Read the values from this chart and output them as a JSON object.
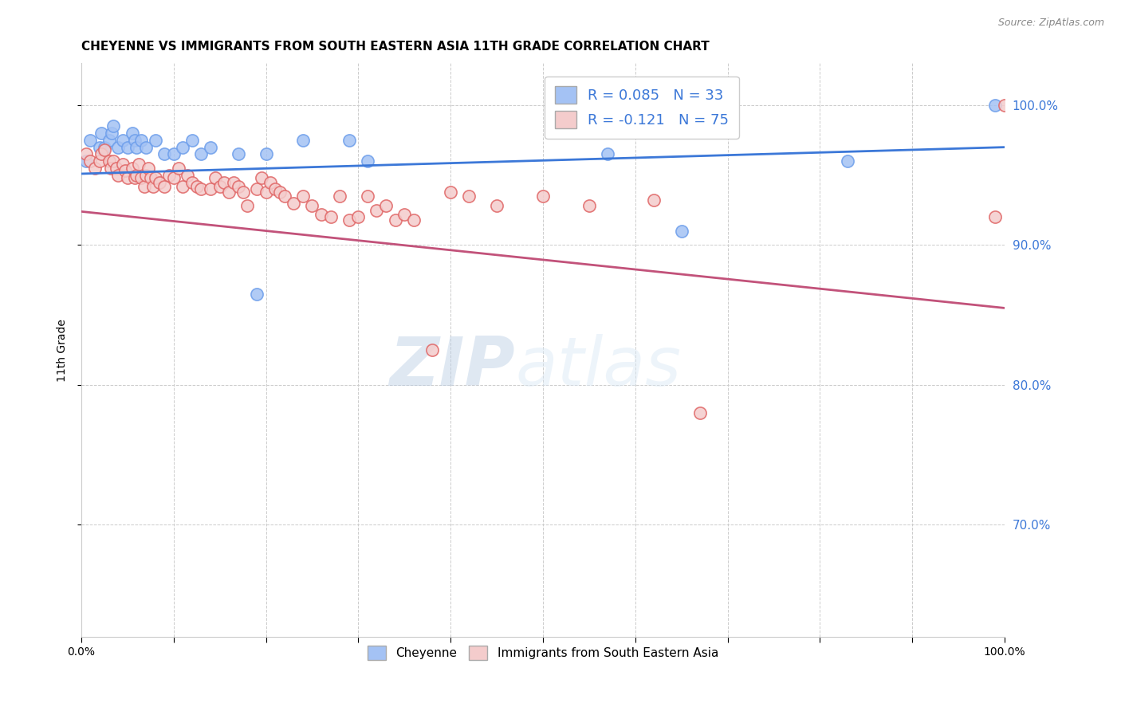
{
  "title": "CHEYENNE VS IMMIGRANTS FROM SOUTH EASTERN ASIA 11TH GRADE CORRELATION CHART",
  "source": "Source: ZipAtlas.com",
  "ylabel": "11th Grade",
  "xlim": [
    0.0,
    1.0
  ],
  "ylim": [
    0.62,
    1.03
  ],
  "yticks": [
    0.7,
    0.8,
    0.9,
    1.0
  ],
  "ytick_labels": [
    "70.0%",
    "80.0%",
    "90.0%",
    "100.0%"
  ],
  "xtick_positions": [
    0.0,
    0.1,
    0.2,
    0.3,
    0.4,
    0.5,
    0.6,
    0.7,
    0.8,
    0.9,
    1.0
  ],
  "xtick_labels": [
    "0.0%",
    "",
    "",
    "",
    "",
    "",
    "",
    "",
    "",
    "",
    "100.0%"
  ],
  "blue_color": "#a4c2f4",
  "pink_color": "#f4cccc",
  "blue_edge": "#6d9eeb",
  "pink_edge": "#e06666",
  "line_blue": "#3c78d8",
  "line_pink": "#c2527a",
  "legend_blue_label": "Cheyenne",
  "legend_pink_label": "Immigrants from South Eastern Asia",
  "watermark_zip": "ZIP",
  "watermark_atlas": "atlas",
  "blue_R": 0.085,
  "blue_N": 33,
  "pink_R": -0.121,
  "pink_N": 75,
  "blue_x": [
    0.005,
    0.01,
    0.02,
    0.022,
    0.025,
    0.03,
    0.033,
    0.035,
    0.04,
    0.045,
    0.05,
    0.055,
    0.058,
    0.06,
    0.065,
    0.07,
    0.08,
    0.09,
    0.1,
    0.11,
    0.12,
    0.13,
    0.14,
    0.17,
    0.19,
    0.2,
    0.24,
    0.29,
    0.31,
    0.57,
    0.65,
    0.83,
    0.99
  ],
  "blue_y": [
    0.96,
    0.975,
    0.97,
    0.98,
    0.97,
    0.975,
    0.98,
    0.985,
    0.97,
    0.975,
    0.97,
    0.98,
    0.975,
    0.97,
    0.975,
    0.97,
    0.975,
    0.965,
    0.965,
    0.97,
    0.975,
    0.965,
    0.97,
    0.965,
    0.865,
    0.965,
    0.975,
    0.975,
    0.96,
    0.965,
    0.91,
    0.96,
    1.0
  ],
  "pink_x": [
    0.005,
    0.01,
    0.015,
    0.02,
    0.022,
    0.025,
    0.03,
    0.032,
    0.035,
    0.038,
    0.04,
    0.045,
    0.048,
    0.05,
    0.055,
    0.058,
    0.06,
    0.062,
    0.065,
    0.068,
    0.07,
    0.073,
    0.075,
    0.078,
    0.08,
    0.085,
    0.09,
    0.095,
    0.1,
    0.105,
    0.11,
    0.115,
    0.12,
    0.125,
    0.13,
    0.14,
    0.145,
    0.15,
    0.155,
    0.16,
    0.165,
    0.17,
    0.175,
    0.18,
    0.19,
    0.195,
    0.2,
    0.205,
    0.21,
    0.215,
    0.22,
    0.23,
    0.24,
    0.25,
    0.26,
    0.27,
    0.28,
    0.29,
    0.3,
    0.31,
    0.32,
    0.33,
    0.34,
    0.35,
    0.36,
    0.38,
    0.4,
    0.42,
    0.45,
    0.5,
    0.55,
    0.62,
    0.67,
    0.99,
    1.0
  ],
  "pink_y": [
    0.965,
    0.96,
    0.955,
    0.96,
    0.965,
    0.968,
    0.96,
    0.955,
    0.96,
    0.955,
    0.95,
    0.958,
    0.953,
    0.948,
    0.955,
    0.948,
    0.95,
    0.958,
    0.948,
    0.942,
    0.95,
    0.955,
    0.948,
    0.942,
    0.948,
    0.945,
    0.942,
    0.95,
    0.948,
    0.955,
    0.942,
    0.95,
    0.945,
    0.942,
    0.94,
    0.94,
    0.948,
    0.942,
    0.945,
    0.938,
    0.945,
    0.942,
    0.938,
    0.928,
    0.94,
    0.948,
    0.938,
    0.945,
    0.94,
    0.938,
    0.935,
    0.93,
    0.935,
    0.928,
    0.922,
    0.92,
    0.935,
    0.918,
    0.92,
    0.935,
    0.925,
    0.928,
    0.918,
    0.922,
    0.918,
    0.825,
    0.938,
    0.935,
    0.928,
    0.935,
    0.928,
    0.932,
    0.78,
    0.92,
    1.0
  ],
  "background_color": "#ffffff",
  "grid_color": "#cccccc",
  "title_fontsize": 11,
  "tick_color_right": "#3c78d8"
}
